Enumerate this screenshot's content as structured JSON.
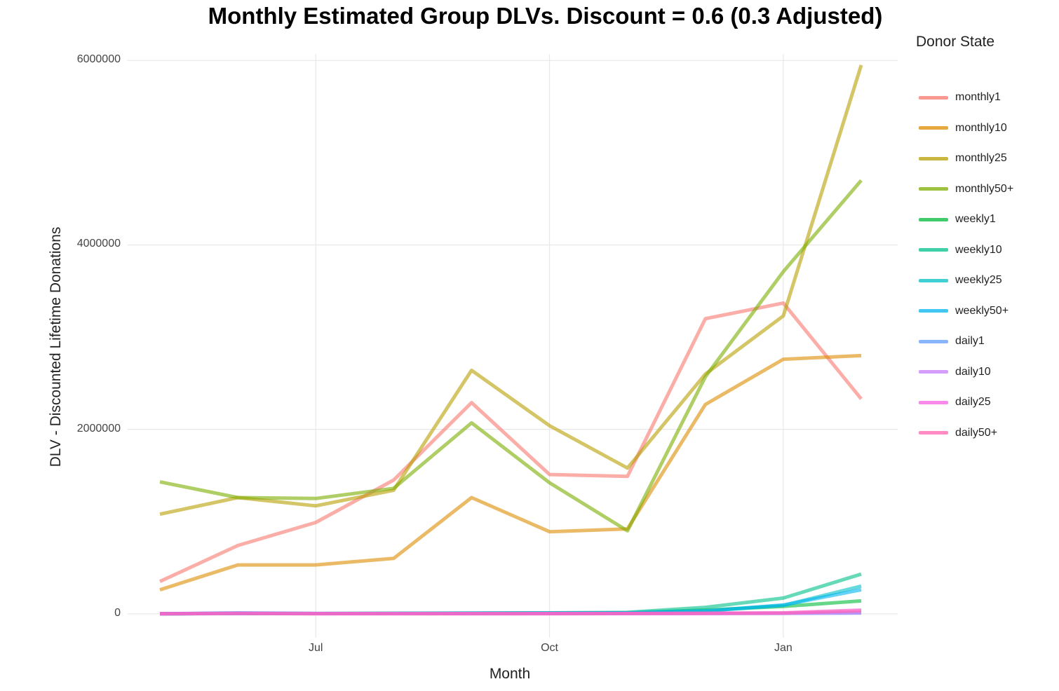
{
  "chart_data": {
    "type": "line",
    "title": "Monthly Estimated Group DLVs. Discount = 0.6 (0.3 Adjusted)",
    "xlabel": "Month",
    "ylabel": "DLV - Discounted Lifetime Donations",
    "legend_title": "Donor State",
    "legend_position": "right",
    "grid": true,
    "x": [
      "2019-05",
      "2019-06",
      "2019-07",
      "2019-08",
      "2019-09",
      "2019-10",
      "2019-11",
      "2019-12",
      "2020-01",
      "2020-02"
    ],
    "x_ticks": [
      {
        "x": "2019-07",
        "label": "Jul"
      },
      {
        "x": "2019-10",
        "label": "Oct"
      },
      {
        "x": "2020-01",
        "label": "Jan"
      }
    ],
    "y_ticks": [
      {
        "value": 0,
        "label": "0"
      },
      {
        "value": 2000000,
        "label": "2000000"
      },
      {
        "value": 4000000,
        "label": "4000000"
      },
      {
        "value": 6000000,
        "label": "6000000"
      }
    ],
    "ylim": [
      -260000,
      6200000
    ],
    "series": [
      {
        "name": "monthly1",
        "color": "#F8766D",
        "values": [
          350000,
          740000,
          990000,
          1450000,
          2290000,
          1510000,
          1490000,
          3200000,
          3370000,
          2330000
        ]
      },
      {
        "name": "monthly10",
        "color": "#DE8C00",
        "values": [
          260000,
          530000,
          530000,
          600000,
          1260000,
          890000,
          920000,
          2270000,
          2760000,
          2800000
        ]
      },
      {
        "name": "monthly25",
        "color": "#B79F00",
        "values": [
          1080000,
          1260000,
          1170000,
          1340000,
          2640000,
          2040000,
          1580000,
          2600000,
          3230000,
          5950000
        ]
      },
      {
        "name": "monthly50+",
        "color": "#7CAE00",
        "values": [
          1430000,
          1260000,
          1250000,
          1360000,
          2070000,
          1420000,
          900000,
          2570000,
          3710000,
          4700000
        ]
      },
      {
        "name": "weekly1",
        "color": "#00BA38",
        "values": [
          0,
          5000,
          2000,
          4000,
          6000,
          8000,
          10000,
          40000,
          80000,
          140000
        ]
      },
      {
        "name": "weekly10",
        "color": "#00C08B",
        "values": [
          0,
          6000,
          3000,
          5000,
          8000,
          10000,
          15000,
          70000,
          170000,
          430000
        ]
      },
      {
        "name": "weekly25",
        "color": "#00BFC4",
        "values": [
          0,
          4000,
          2000,
          4000,
          6000,
          7000,
          10000,
          30000,
          90000,
          300000
        ]
      },
      {
        "name": "weekly50+",
        "color": "#00B4F0",
        "values": [
          0,
          3000,
          2000,
          3000,
          5000,
          6000,
          9000,
          30000,
          95000,
          260000
        ]
      },
      {
        "name": "daily1",
        "color": "#619CFF",
        "values": [
          0,
          10000,
          3000,
          2000,
          2000,
          3000,
          3000,
          4000,
          5000,
          8000
        ]
      },
      {
        "name": "daily10",
        "color": "#C77CFF",
        "values": [
          0,
          5000,
          2000,
          2000,
          2000,
          2000,
          2000,
          3000,
          5000,
          10000
        ]
      },
      {
        "name": "daily25",
        "color": "#F564E3",
        "values": [
          0,
          4000,
          2000,
          2000,
          2000,
          2000,
          3000,
          5000,
          10000,
          40000
        ]
      },
      {
        "name": "daily50+",
        "color": "#FF64B0",
        "values": [
          0,
          3000,
          1000,
          1000,
          1000,
          1000,
          2000,
          4000,
          8000,
          30000
        ]
      }
    ]
  }
}
